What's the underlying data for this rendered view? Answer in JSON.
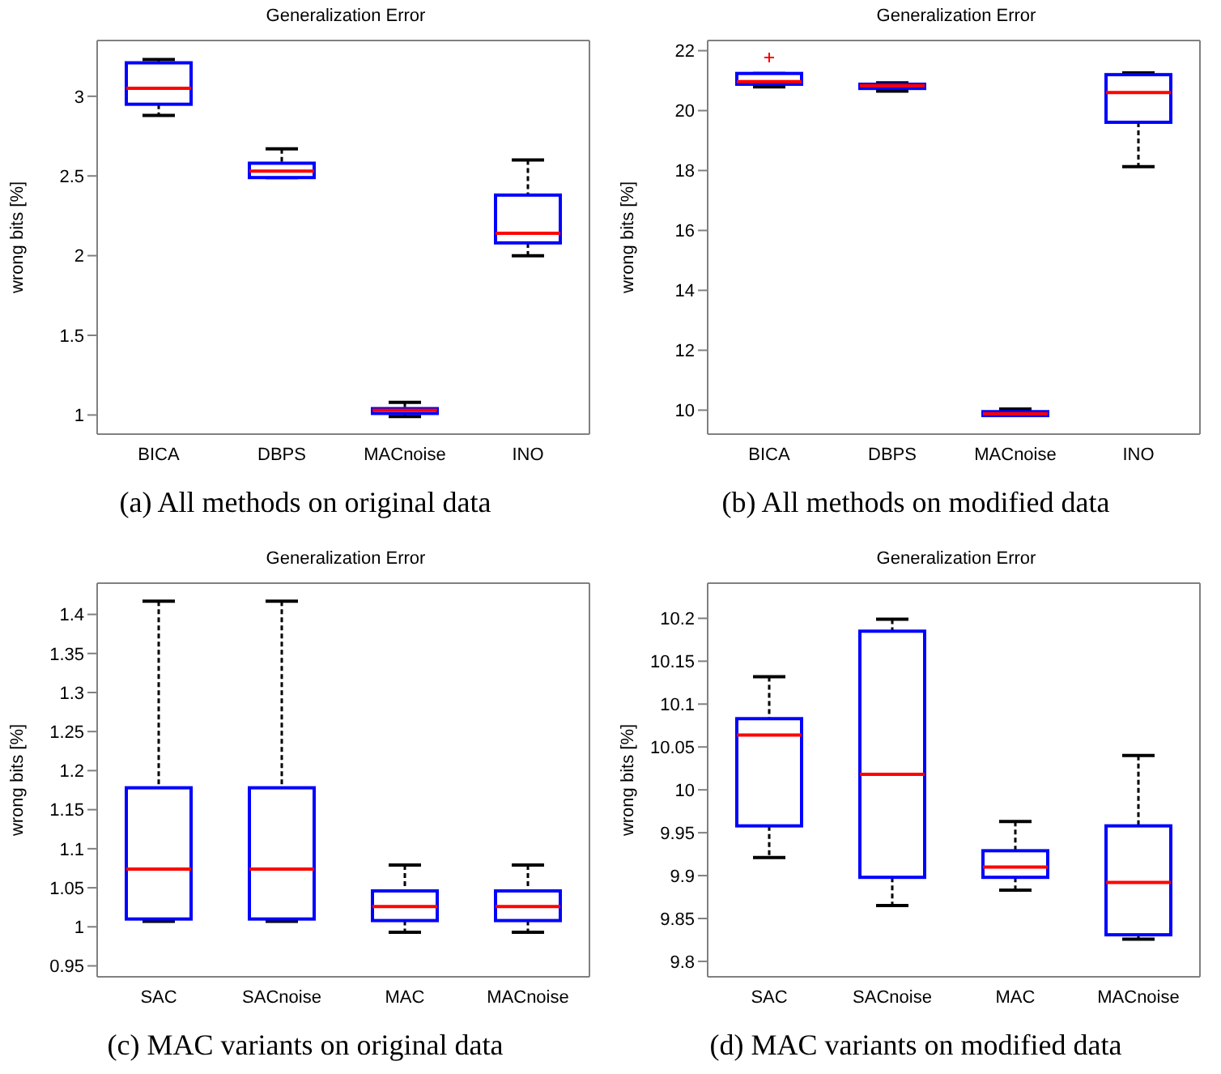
{
  "chart_data": [
    {
      "type": "box",
      "title": "Generalization Error",
      "ylabel": "wrong bits [%]",
      "categories": [
        "BICA",
        "DBPS",
        "MACnoise",
        "INO"
      ],
      "ylim": [
        0.88,
        3.35
      ],
      "yticks": [
        1,
        1.5,
        2,
        2.5,
        3
      ],
      "annotations": [
        "(a) All methods on original data"
      ],
      "series": [
        {
          "color": "#0000ff",
          "boxes": [
            {
              "low": 2.88,
              "q1": 2.95,
              "median": 3.05,
              "q3": 3.21,
              "high": 3.23
            },
            {
              "low": 2.49,
              "q1": 2.49,
              "median": 2.53,
              "q3": 2.58,
              "high": 2.67
            },
            {
              "low": 0.99,
              "q1": 1.01,
              "median": 1.03,
              "q3": 1.04,
              "high": 1.08
            },
            {
              "low": 2.0,
              "q1": 2.08,
              "median": 2.14,
              "q3": 2.38,
              "high": 2.6
            }
          ]
        }
      ]
    },
    {
      "type": "box",
      "title": "Generalization Error",
      "ylabel": "wrong bits [%]",
      "categories": [
        "BICA",
        "DBPS",
        "MACnoise",
        "INO"
      ],
      "ylim": [
        9.2,
        22.34
      ],
      "yticks": [
        10,
        12,
        14,
        16,
        18,
        20,
        22
      ],
      "annotations": [
        "(b) All methods on modified data"
      ],
      "series": [
        {
          "color": "#0000ff",
          "boxes": [
            {
              "low": 20.79,
              "q1": 20.88,
              "median": 20.97,
              "q3": 21.24,
              "high": 21.24,
              "outliers": [
                21.77
              ]
            },
            {
              "low": 20.65,
              "q1": 20.74,
              "median": 20.83,
              "q3": 20.88,
              "high": 20.93
            },
            {
              "low": 9.82,
              "q1": 9.82,
              "median": 9.88,
              "q3": 9.95,
              "high": 10.04
            },
            {
              "low": 18.13,
              "q1": 19.61,
              "median": 20.6,
              "q3": 21.2,
              "high": 21.26
            }
          ]
        }
      ]
    },
    {
      "type": "box",
      "title": "Generalization Error",
      "ylabel": "wrong bits [%]",
      "categories": [
        "SAC",
        "SACnoise",
        "MAC",
        "MACnoise"
      ],
      "ylim": [
        0.936,
        1.44
      ],
      "yticks": [
        0.95,
        1,
        1.05,
        1.1,
        1.15,
        1.2,
        1.25,
        1.3,
        1.35,
        1.4
      ],
      "annotations": [
        "(c) MAC variants on original data"
      ],
      "series": [
        {
          "color": "#0000ff",
          "boxes": [
            {
              "low": 1.007,
              "q1": 1.01,
              "median": 1.074,
              "q3": 1.178,
              "high": 1.417
            },
            {
              "low": 1.007,
              "q1": 1.01,
              "median": 1.074,
              "q3": 1.178,
              "high": 1.417
            },
            {
              "low": 0.993,
              "q1": 1.008,
              "median": 1.026,
              "q3": 1.046,
              "high": 1.079
            },
            {
              "low": 0.993,
              "q1": 1.008,
              "median": 1.026,
              "q3": 1.046,
              "high": 1.079
            }
          ]
        }
      ]
    },
    {
      "type": "box",
      "title": "Generalization Error",
      "ylabel": "wrong bits [%]",
      "categories": [
        "SAC",
        "SACnoise",
        "MAC",
        "MACnoise"
      ],
      "ylim": [
        9.782,
        10.241
      ],
      "yticks": [
        9.8,
        9.85,
        9.9,
        9.95,
        10,
        10.05,
        10.1,
        10.15,
        10.2
      ],
      "annotations": [
        "(d) MAC variants on modified data"
      ],
      "series": [
        {
          "color": "#0000ff",
          "boxes": [
            {
              "low": 9.921,
              "q1": 9.958,
              "median": 10.064,
              "q3": 10.083,
              "high": 10.132
            },
            {
              "low": 9.865,
              "q1": 9.898,
              "median": 10.018,
              "q3": 10.185,
              "high": 10.199
            },
            {
              "low": 9.883,
              "q1": 9.898,
              "median": 9.91,
              "q3": 9.929,
              "high": 9.963
            },
            {
              "low": 9.826,
              "q1": 9.831,
              "median": 9.892,
              "q3": 9.958,
              "high": 10.04
            }
          ]
        }
      ]
    }
  ]
}
